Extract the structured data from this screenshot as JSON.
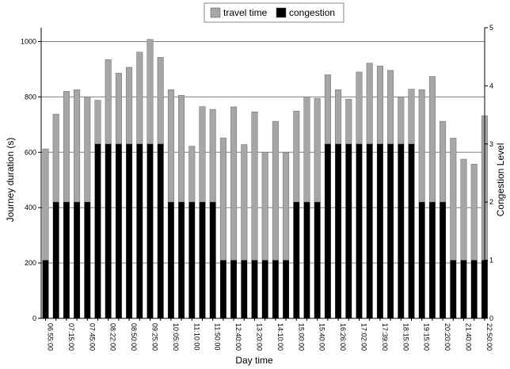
{
  "chart_data": {
    "type": "bar",
    "title": "",
    "xlabel": "Day time",
    "ylabel": "Journey duration (s)",
    "y2label": "Congestion Level",
    "ylim": [
      0,
      1050
    ],
    "y2lim": [
      0,
      5
    ],
    "yticks": [
      0,
      200,
      400,
      600,
      800,
      1000
    ],
    "y2ticks": [
      0,
      1,
      2,
      3,
      4,
      5
    ],
    "grid": true,
    "legend": "top-center",
    "series": [
      {
        "name": "travel time",
        "color": "#a6a6a6",
        "axis": "left",
        "values": [
          612,
          738,
          820,
          826,
          800,
          788,
          935,
          886,
          907,
          962,
          1008,
          943,
          826,
          806,
          622,
          765,
          755,
          652,
          764,
          628,
          746,
          600,
          712,
          598,
          749,
          800,
          795,
          880,
          826,
          792,
          890,
          922,
          912,
          896,
          800,
          828,
          826,
          874,
          712,
          651,
          575,
          557,
          732
        ]
      },
      {
        "name": "congestion",
        "color": "#000000",
        "axis": "right",
        "values": [
          1,
          2,
          2,
          2,
          2,
          3,
          3,
          3,
          3,
          3,
          3,
          3,
          2,
          2,
          2,
          2,
          2,
          1,
          1,
          1,
          1,
          1,
          1,
          1,
          2,
          2,
          2,
          3,
          3,
          3,
          3,
          3,
          3,
          3,
          3,
          3,
          2,
          2,
          2,
          1,
          1,
          1,
          1
        ]
      }
    ],
    "tick_labels": [
      "06:55:00",
      "",
      "07:15:00",
      "",
      "07:45:00",
      "",
      "08:22:00",
      "",
      "08:50:00",
      "",
      "09:25:00",
      "",
      "10:05:00",
      "",
      "11:10:00",
      "",
      "11:50:00",
      "",
      "12:40:00",
      "",
      "13:20:00",
      "",
      "14:10:00",
      "",
      "15:00:00",
      "",
      "15:40:00",
      "",
      "16:26:00",
      "",
      "17:02:00",
      "",
      "17:39:00",
      "",
      "18:15:00",
      "",
      "19:15:00",
      "",
      "20:20:00",
      "",
      "21:40:00",
      "",
      "22:50:00"
    ]
  }
}
